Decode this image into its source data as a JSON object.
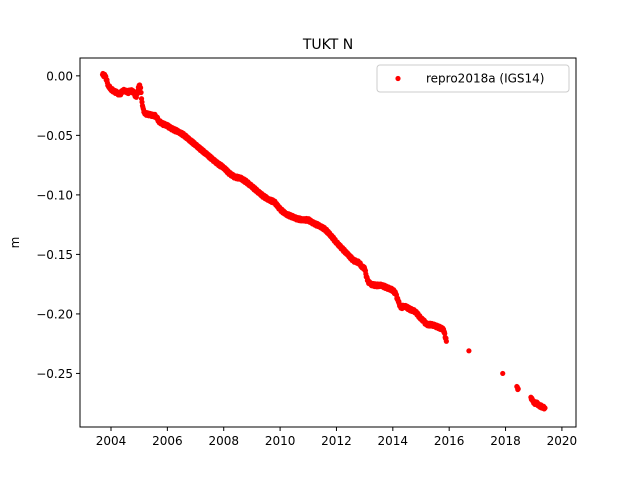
{
  "chart_data": {
    "type": "scatter",
    "title": "TUKT N",
    "xlabel": "",
    "ylabel": "m",
    "xlim": [
      2002.9,
      2020.5
    ],
    "ylim": [
      -0.295,
      0.015
    ],
    "x_ticks": [
      2004,
      2006,
      2008,
      2010,
      2012,
      2014,
      2016,
      2018,
      2020
    ],
    "x_tick_labels": [
      "2004",
      "2006",
      "2008",
      "2010",
      "2012",
      "2014",
      "2016",
      "2018",
      "2020"
    ],
    "y_ticks": [
      0.0,
      -0.05,
      -0.1,
      -0.15,
      -0.2,
      -0.25
    ],
    "y_tick_labels": [
      "0.00",
      "−0.05",
      "−0.10",
      "−0.15",
      "−0.20",
      "−0.25"
    ],
    "grid": false,
    "legend": {
      "placement": "top-right",
      "entries": [
        "repro2018a (IGS14)"
      ]
    },
    "series": [
      {
        "name": "repro2018a (IGS14)",
        "color": "#ff0000",
        "marker": "circle",
        "x": [
          2003.7,
          2003.8,
          2003.9,
          2004.0,
          2004.1,
          2004.2,
          2004.3,
          2004.4,
          2004.5,
          2004.6,
          2004.7,
          2004.8,
          2004.9,
          2005.0,
          2005.05,
          2005.1,
          2005.15,
          2005.2,
          2005.3,
          2005.4,
          2005.5,
          2005.6,
          2005.7,
          2005.8,
          2005.9,
          2006.0,
          2006.2,
          2006.4,
          2006.6,
          2006.8,
          2007.0,
          2007.2,
          2007.4,
          2007.6,
          2007.8,
          2008.0,
          2008.2,
          2008.4,
          2008.6,
          2008.8,
          2009.0,
          2009.2,
          2009.4,
          2009.6,
          2009.8,
          2010.0,
          2010.2,
          2010.4,
          2010.6,
          2010.8,
          2011.0,
          2011.2,
          2011.4,
          2011.6,
          2011.8,
          2012.0,
          2012.2,
          2012.4,
          2012.6,
          2012.8,
          2012.9,
          2013.0,
          2013.1,
          2013.2,
          2013.4,
          2013.6,
          2013.8,
          2014.0,
          2014.1,
          2014.2,
          2014.3,
          2014.4,
          2014.6,
          2014.8,
          2015.0,
          2015.1,
          2015.2,
          2015.4,
          2015.6,
          2015.8,
          2015.9,
          2016.7,
          2017.9,
          2018.4,
          2018.45,
          2018.9,
          2018.95,
          2019.0,
          2019.1,
          2019.2,
          2019.3,
          2019.4
        ],
        "y": [
          0.001,
          0.0,
          -0.008,
          -0.011,
          -0.013,
          -0.014,
          -0.016,
          -0.013,
          -0.012,
          -0.014,
          -0.012,
          -0.014,
          -0.018,
          -0.008,
          -0.01,
          -0.022,
          -0.028,
          -0.032,
          -0.032,
          -0.033,
          -0.033,
          -0.034,
          -0.038,
          -0.04,
          -0.041,
          -0.042,
          -0.045,
          -0.047,
          -0.05,
          -0.054,
          -0.058,
          -0.062,
          -0.066,
          -0.07,
          -0.074,
          -0.077,
          -0.082,
          -0.085,
          -0.086,
          -0.089,
          -0.093,
          -0.097,
          -0.101,
          -0.104,
          -0.106,
          -0.112,
          -0.116,
          -0.118,
          -0.12,
          -0.121,
          -0.121,
          -0.124,
          -0.126,
          -0.129,
          -0.134,
          -0.14,
          -0.145,
          -0.15,
          -0.155,
          -0.157,
          -0.16,
          -0.162,
          -0.172,
          -0.175,
          -0.176,
          -0.176,
          -0.178,
          -0.18,
          -0.183,
          -0.19,
          -0.195,
          -0.193,
          -0.196,
          -0.198,
          -0.204,
          -0.206,
          -0.209,
          -0.209,
          -0.211,
          -0.213,
          -0.223,
          -0.231,
          -0.25,
          -0.261,
          -0.263,
          -0.27,
          -0.272,
          -0.275,
          -0.275,
          -0.277,
          -0.278,
          -0.279
        ]
      }
    ]
  }
}
